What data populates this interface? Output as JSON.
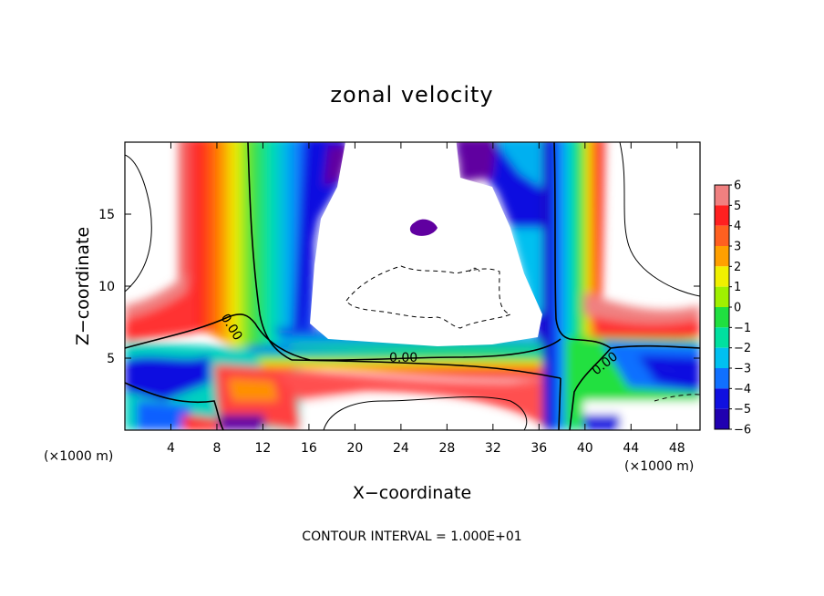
{
  "chart_data": {
    "type": "heatmap",
    "title": "zonal velocity",
    "xlabel": "X−coordinate",
    "ylabel": "Z−coordinate",
    "xlim": [
      0,
      50
    ],
    "ylim": [
      0,
      20
    ],
    "x_ticks": [
      4,
      8,
      12,
      16,
      20,
      24,
      28,
      32,
      36,
      40,
      44,
      48
    ],
    "x_tick_labels": [
      "4",
      "8",
      "12",
      "16",
      "20",
      "24",
      "28",
      "32",
      "36",
      "40",
      "44",
      "48"
    ],
    "y_ticks": [
      5,
      10,
      15
    ],
    "y_tick_labels": [
      "5",
      "10",
      "15"
    ],
    "x_units_left": "(×1000 m)",
    "x_units_right": "(×1000 m)",
    "contour_interval_text": "CONTOUR INTERVAL = 1.000E+01",
    "contour_labels": [
      "0.00",
      "0.00",
      "0.00"
    ],
    "colorbar": {
      "levels": [
        6,
        5,
        4,
        3,
        2,
        1,
        0,
        -1,
        -2,
        -3,
        -4,
        -5,
        -6
      ],
      "labels": [
        "6",
        "5",
        "4",
        "3",
        "2",
        "1",
        "0",
        "−1",
        "−2",
        "−3",
        "−4",
        "−5",
        "−6"
      ],
      "colors": [
        "#f08080",
        "#ff2020",
        "#ff6020",
        "#ffa000",
        "#f0f000",
        "#a0f000",
        "#20e040",
        "#00e0a0",
        "#00c0f0",
        "#1070ff",
        "#1010e0",
        "#2000b0",
        "#6000a0"
      ]
    }
  }
}
